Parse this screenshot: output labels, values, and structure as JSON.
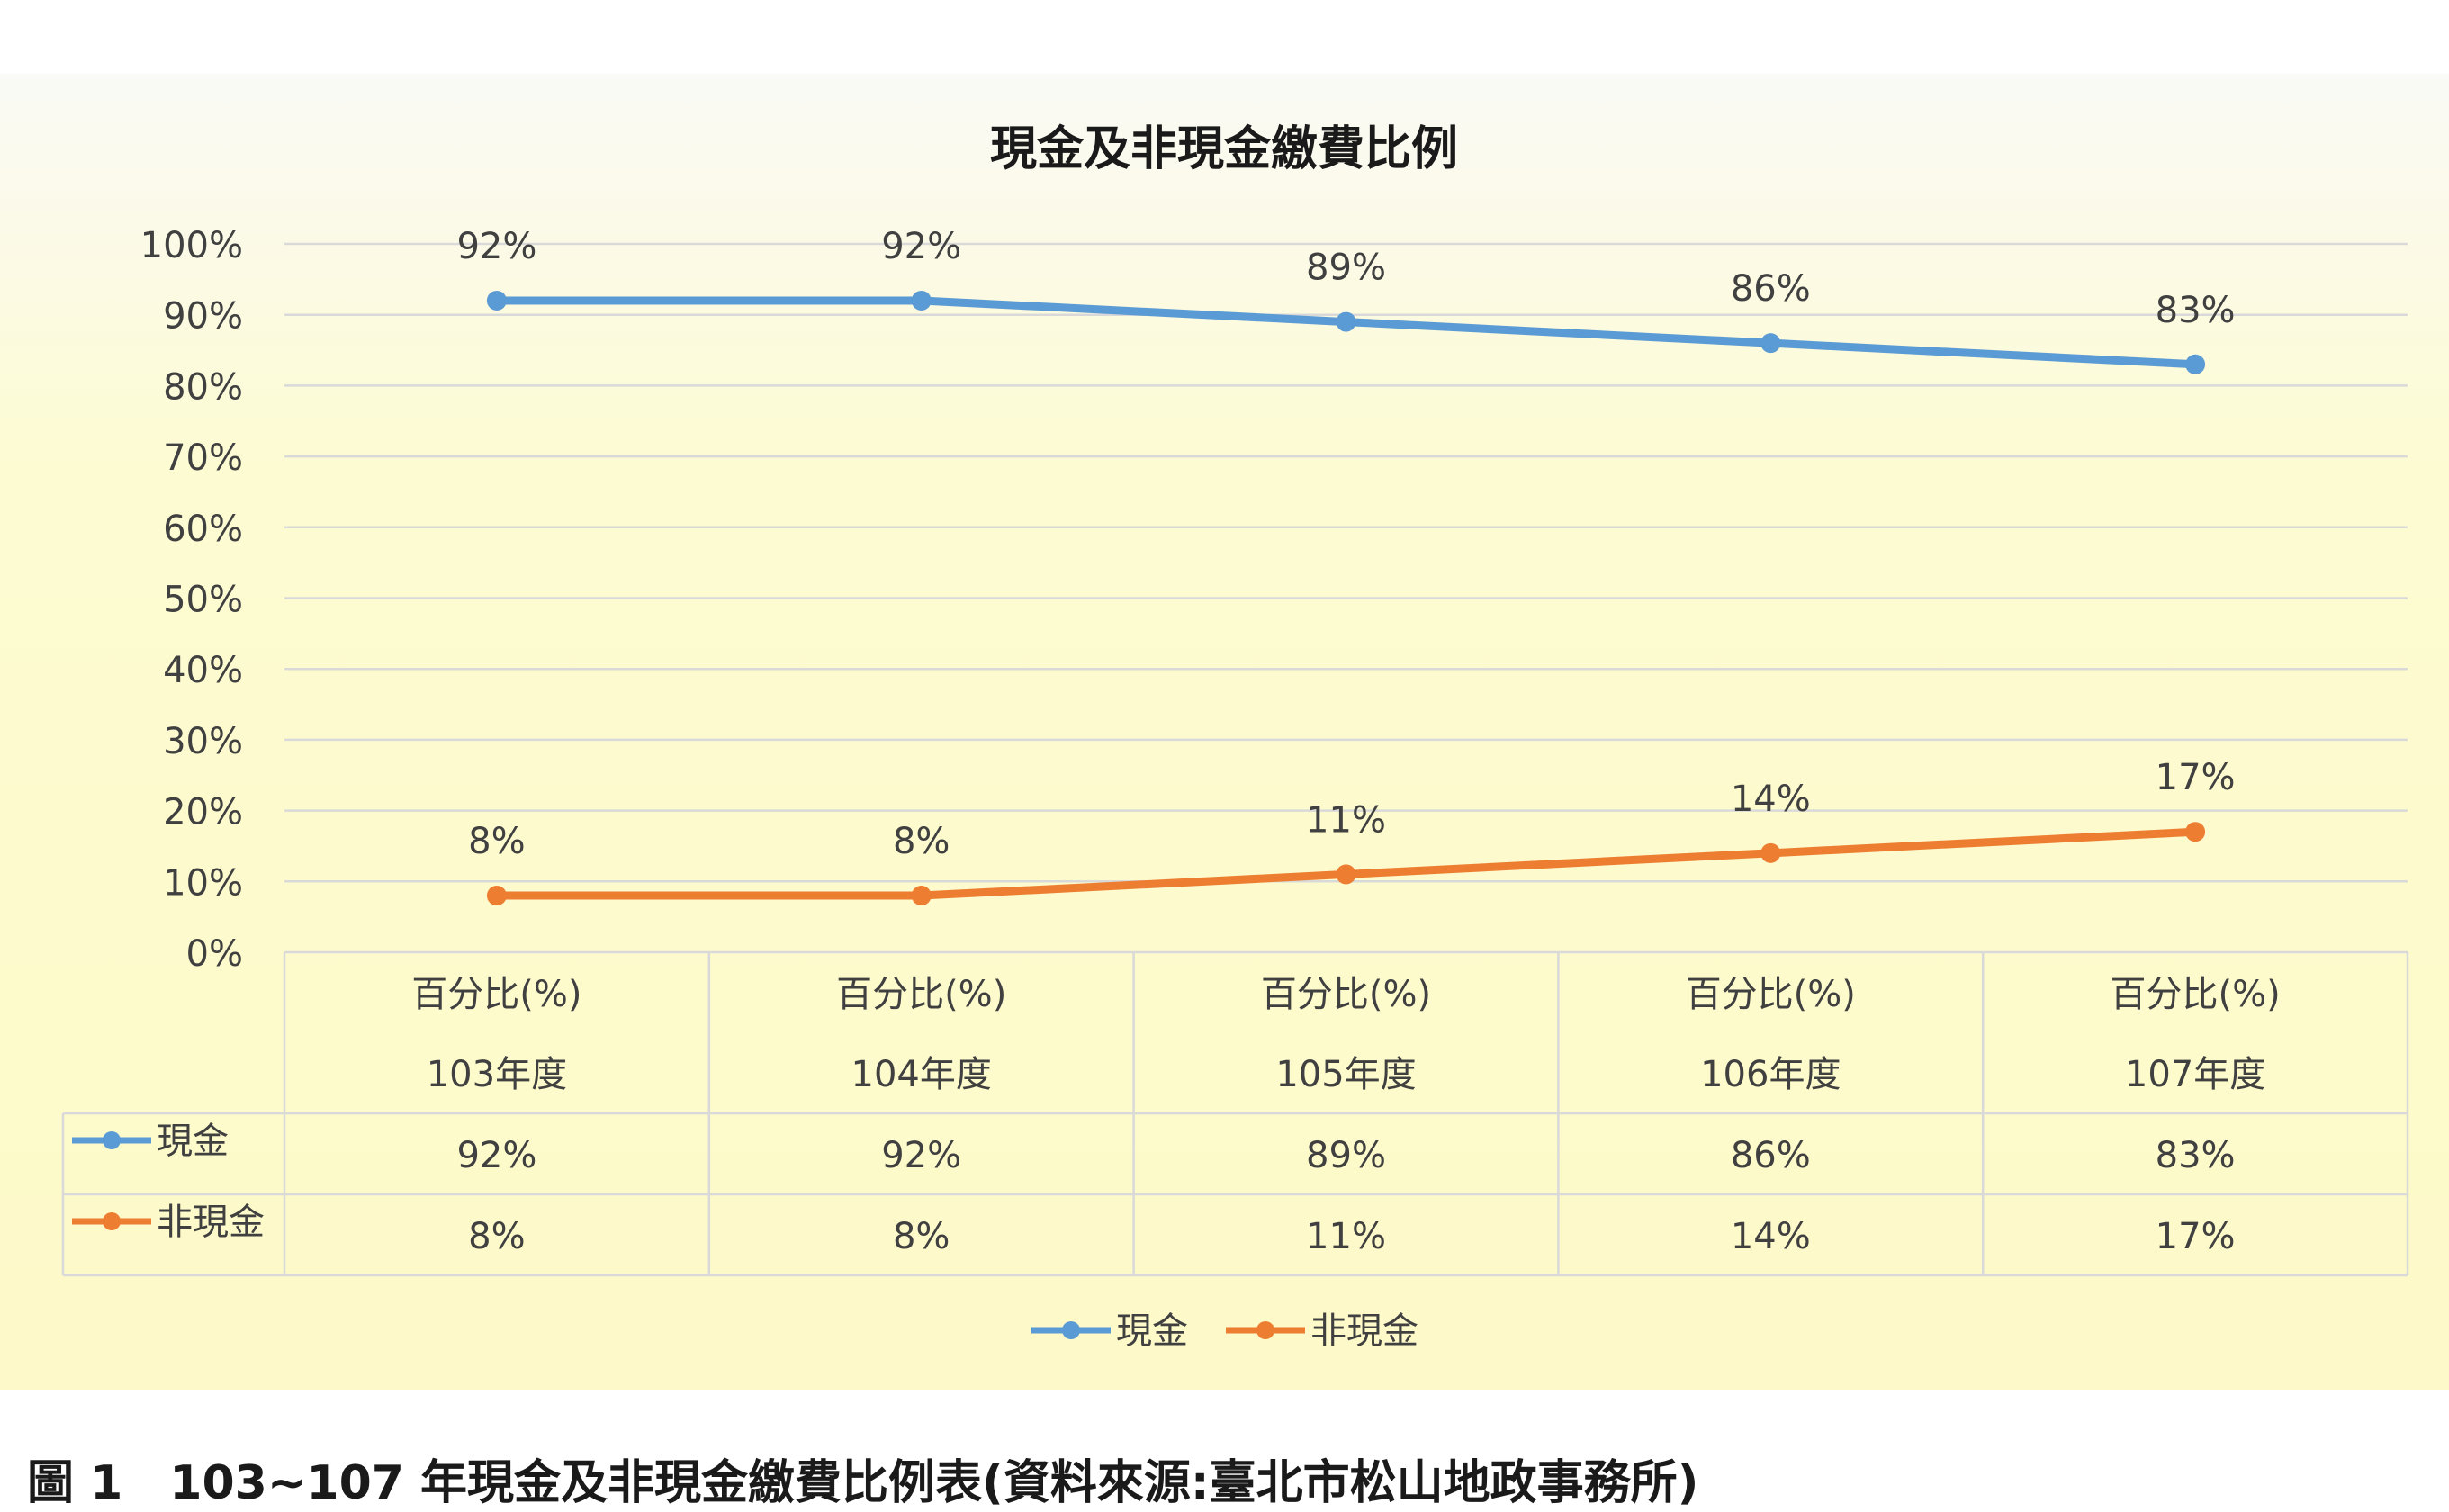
{
  "chart_data": {
    "type": "line",
    "title": "現金及非現金繳費比例",
    "categories": [
      "103年度",
      "104年度",
      "105年度",
      "106年度",
      "107年度"
    ],
    "header_label": "百分比(%)",
    "series": [
      {
        "name": "現金",
        "values": [
          92,
          92,
          89,
          86,
          83
        ],
        "labels": [
          "92%",
          "92%",
          "89%",
          "86%",
          "83%"
        ],
        "color": "#5b9bd5"
      },
      {
        "name": "非現金",
        "values": [
          8,
          8,
          11,
          14,
          17
        ],
        "labels": [
          "8%",
          "8%",
          "11%",
          "14%",
          "17%"
        ],
        "color": "#ed7d31"
      }
    ],
    "ylim": [
      0,
      100
    ],
    "yticks": [
      "0%",
      "10%",
      "20%",
      "30%",
      "40%",
      "50%",
      "60%",
      "70%",
      "80%",
      "90%",
      "100%"
    ],
    "grid": true,
    "legend": "bottom-center",
    "data_table": true
  },
  "caption": "圖 1　103~107 年現金及非現金繳費比例表(資料來源:臺北市松山地政事務所)"
}
